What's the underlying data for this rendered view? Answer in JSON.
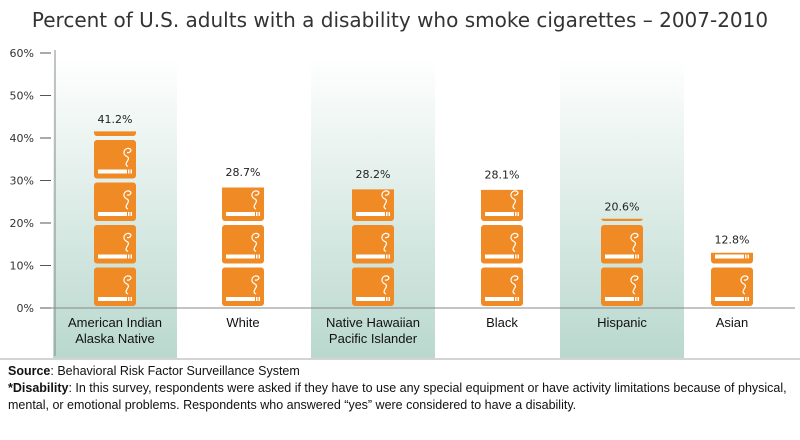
{
  "chart_data": {
    "type": "bar",
    "style": "pictograph",
    "title": "Percent of U.S. adults with a disability who smoke cigarettes – 2007-2010",
    "categories": [
      "American Indian Alaska Native",
      "White",
      "Native Hawaiian Pacific Islander",
      "Black",
      "Hispanic",
      "Asian"
    ],
    "category_lines": [
      [
        "American Indian",
        "Alaska Native"
      ],
      [
        "White"
      ],
      [
        "Native Hawaiian",
        "Pacific Islander"
      ],
      [
        "Black"
      ],
      [
        "Hispanic"
      ],
      [
        "Asian"
      ]
    ],
    "values": [
      41.2,
      28.7,
      28.2,
      28.1,
      20.6,
      12.8
    ],
    "data_labels": [
      "41.2%",
      "28.7%",
      "28.2%",
      "28.1%",
      "20.6%",
      "12.8%"
    ],
    "highlighted_categories": [
      0,
      2,
      4
    ],
    "unit_per_icon": 10,
    "icon": "cigarette-icon",
    "ylim": [
      0,
      60
    ],
    "yticks": [
      "0%",
      "10%",
      "20%",
      "30%",
      "40%",
      "50%",
      "60%"
    ],
    "colors": {
      "icon": "#F08A24",
      "highlight": "#B9D8CE",
      "axis": "#888888"
    },
    "grid": false
  },
  "notes": {
    "source_label": "Source",
    "source_text": ": Behavioral Risk Factor Surveillance System",
    "disability_label": "*Disability",
    "disability_text": ": In this survey, respondents were asked if they have to use any special equipment or have activity limitations because of physical, mental, or emotional problems. Respondents who answered “yes” were considered to have a disability."
  }
}
